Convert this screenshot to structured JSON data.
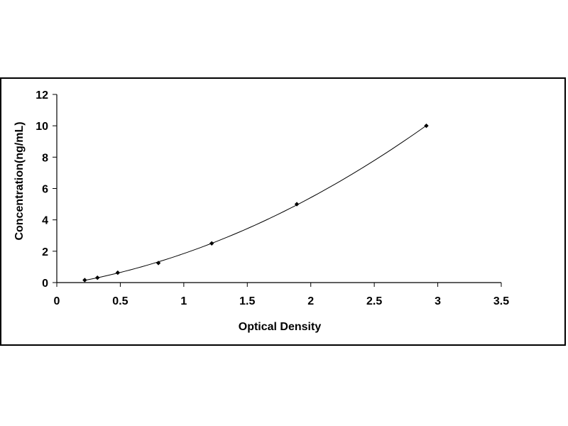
{
  "chart_data": {
    "type": "scatter",
    "title": "",
    "xlabel": "Optical Density",
    "ylabel": "Concentration(ng/mL)",
    "xlim": [
      0,
      3.5
    ],
    "ylim": [
      0,
      12
    ],
    "xticks": [
      "0",
      "0.5",
      "1",
      "1.5",
      "2",
      "2.5",
      "3",
      "3.5"
    ],
    "yticks": [
      "0",
      "2",
      "4",
      "6",
      "8",
      "10",
      "12"
    ],
    "grid": false,
    "legend": "none",
    "series": [
      {
        "points": [
          {
            "x": 0.22,
            "y": 0.16
          },
          {
            "x": 0.32,
            "y": 0.31
          },
          {
            "x": 0.48,
            "y": 0.63
          },
          {
            "x": 0.8,
            "y": 1.25
          },
          {
            "x": 1.22,
            "y": 2.5
          },
          {
            "x": 1.89,
            "y": 5.0
          },
          {
            "x": 2.91,
            "y": 10.0
          }
        ],
        "trendline": "polynomial",
        "marker": "diamond",
        "color": "#000000"
      }
    ]
  }
}
